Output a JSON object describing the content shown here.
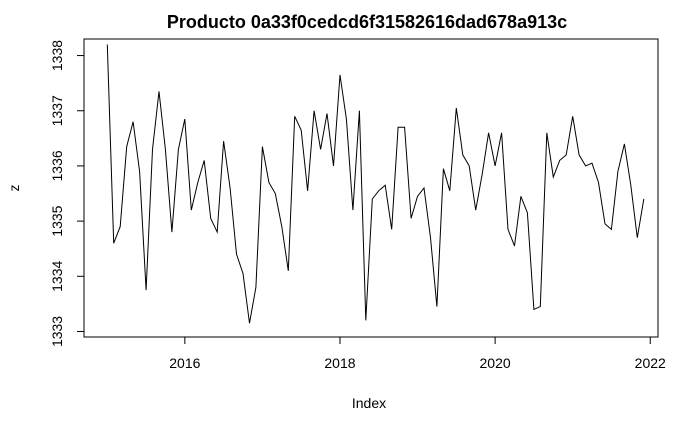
{
  "chart_data": {
    "type": "line",
    "title": "Producto  0a33f0cedcd6f31582616dad678a913c",
    "xlabel": "Index",
    "ylabel": "z",
    "xlim": [
      2014.7,
      2022.1
    ],
    "ylim": [
      1332.9,
      1338.3
    ],
    "x_ticks": [
      2016,
      2018,
      2020,
      2022
    ],
    "x_tick_labels": [
      "2016",
      "2018",
      "2020",
      "2022"
    ],
    "y_ticks": [
      1333,
      1334,
      1335,
      1336,
      1337,
      1338
    ],
    "y_tick_labels": [
      "1333",
      "1334",
      "1335",
      "1336",
      "1337",
      "1338"
    ],
    "grid": false,
    "legend": "none",
    "line_color": "#000000",
    "x_start": 2015.0,
    "x_step": 0.08333,
    "series": [
      {
        "values": [
          1338.2,
          1334.6,
          1334.9,
          1336.35,
          1336.8,
          1335.9,
          1333.75,
          1336.3,
          1337.35,
          1336.3,
          1334.8,
          1336.3,
          1336.85,
          1335.2,
          1335.7,
          1336.1,
          1335.05,
          1334.8,
          1336.45,
          1335.6,
          1334.4,
          1334.05,
          1333.15,
          1333.8,
          1336.35,
          1335.7,
          1335.5,
          1334.9,
          1334.1,
          1336.9,
          1336.65,
          1335.55,
          1337.0,
          1336.3,
          1336.95,
          1336.0,
          1337.65,
          1336.85,
          1335.2,
          1337.0,
          1333.2,
          1335.4,
          1335.55,
          1335.65,
          1334.85,
          1336.7,
          1336.7,
          1335.05,
          1335.45,
          1335.6,
          1334.7,
          1333.45,
          1335.95,
          1335.55,
          1337.05,
          1336.2,
          1336.0,
          1335.2,
          1335.85,
          1336.6,
          1336.0,
          1336.6,
          1334.85,
          1334.55,
          1335.45,
          1335.15,
          1333.4,
          1333.45,
          1336.6,
          1335.8,
          1336.1,
          1336.2,
          1336.9,
          1336.2,
          1336.0,
          1336.05,
          1335.7,
          1334.95,
          1334.85,
          1335.9,
          1336.4,
          1335.65,
          1334.7,
          1335.4
        ]
      }
    ]
  }
}
